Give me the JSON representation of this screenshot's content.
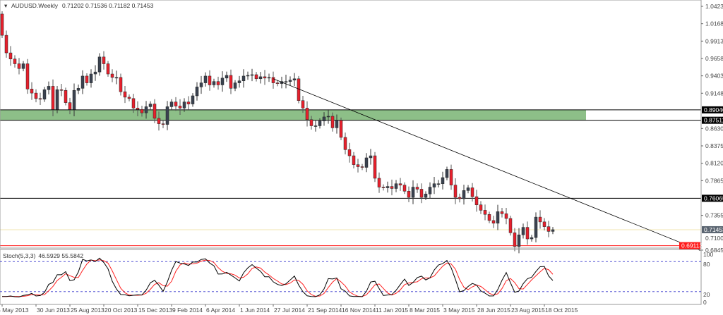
{
  "header": {
    "symbol": "AUDUSD.Weekly",
    "ohlc": "0.71202 0.71536 0.71182 0.71453"
  },
  "indicator": {
    "name": "Stoch(5,3,3)",
    "values": "46.5929 55.5842",
    "levels": [
      "100",
      "80",
      "20",
      "0"
    ]
  },
  "colors": {
    "bull": "#3a4250",
    "bear": "#e8202c",
    "zone": "#8dbf88",
    "stoch_main": "#000000",
    "stoch_signal": "#ff2020",
    "level_line": "#3333cc"
  },
  "chart_data": {
    "type": "candlestick",
    "title": "AUDUSD.Weekly",
    "ylim": [
      0.68455,
      1.0423
    ],
    "grid": false,
    "price_ticks": [
      "1.04230",
      "1.01680",
      "0.99130",
      "0.96580",
      "0.94030",
      "0.91480",
      "0.86305",
      "0.83755",
      "0.81205",
      "0.78655",
      "0.73555",
      "0.68455"
    ],
    "date_ticks": [
      "5 May 2013",
      "30 Jun 2013",
      "25 Aug 2013",
      "20 Oct 2013",
      "15 Dec 2013",
      "9 Feb 2014",
      "6 Apr 2014",
      "1 Jun 2014",
      "27 Jul 2014",
      "21 Sep 2014",
      "16 Nov 2014",
      "11 Jan 2015",
      "8 Mar 2015",
      "3 May 2015",
      "28 Jun 2015",
      "23 Aug 2015",
      "18 Oct 2015"
    ],
    "first_open": 1.031,
    "last_open": 0.71202,
    "close": [
      0.9998,
      0.974,
      0.965,
      0.958,
      0.951,
      0.958,
      0.921,
      0.915,
      0.907,
      0.906,
      0.92,
      0.925,
      0.891,
      0.92,
      0.919,
      0.901,
      0.891,
      0.919,
      0.922,
      0.94,
      0.93,
      0.943,
      0.946,
      0.968,
      0.958,
      0.943,
      0.938,
      0.938,
      0.917,
      0.909,
      0.907,
      0.893,
      0.891,
      0.886,
      0.895,
      0.899,
      0.878,
      0.87,
      0.869,
      0.895,
      0.902,
      0.896,
      0.893,
      0.902,
      0.899,
      0.911,
      0.924,
      0.93,
      0.94,
      0.927,
      0.932,
      0.927,
      0.937,
      0.941,
      0.922,
      0.93,
      0.933,
      0.94,
      0.941,
      0.942,
      0.936,
      0.939,
      0.937,
      0.938,
      0.93,
      0.929,
      0.932,
      0.932,
      0.934,
      0.936,
      0.904,
      0.893,
      0.876,
      0.867,
      0.867,
      0.874,
      0.88,
      0.881,
      0.864,
      0.875,
      0.85,
      0.832,
      0.823,
      0.81,
      0.807,
      0.806,
      0.82,
      0.823,
      0.79,
      0.777,
      0.776,
      0.778,
      0.775,
      0.782,
      0.78,
      0.771,
      0.762,
      0.777,
      0.774,
      0.762,
      0.767,
      0.777,
      0.782,
      0.782,
      0.791,
      0.803,
      0.78,
      0.762,
      0.76,
      0.772,
      0.776,
      0.763,
      0.751,
      0.743,
      0.737,
      0.728,
      0.724,
      0.741,
      0.738,
      0.731,
      0.71,
      0.69,
      0.707,
      0.718,
      0.701,
      0.703,
      0.733,
      0.726,
      0.719,
      0.712,
      0.71453
    ],
    "zone": {
      "low": "0.87511",
      "high": "0.89040"
    },
    "hlines": [
      {
        "price": "0.89040",
        "color": "#000000"
      },
      {
        "price": "0.87511",
        "color": "#000000"
      },
      {
        "price": "0.76065",
        "color": "#000000"
      },
      {
        "price": "0.71453",
        "color": "#5a6470"
      },
      {
        "price": "0.69113",
        "color": "#ff1a1a"
      }
    ],
    "hidden_tick": "0.71005",
    "trendline": {
      "from_week": "27 Jul 2014",
      "from_price": 0.936,
      "to_price": 0.684
    }
  }
}
